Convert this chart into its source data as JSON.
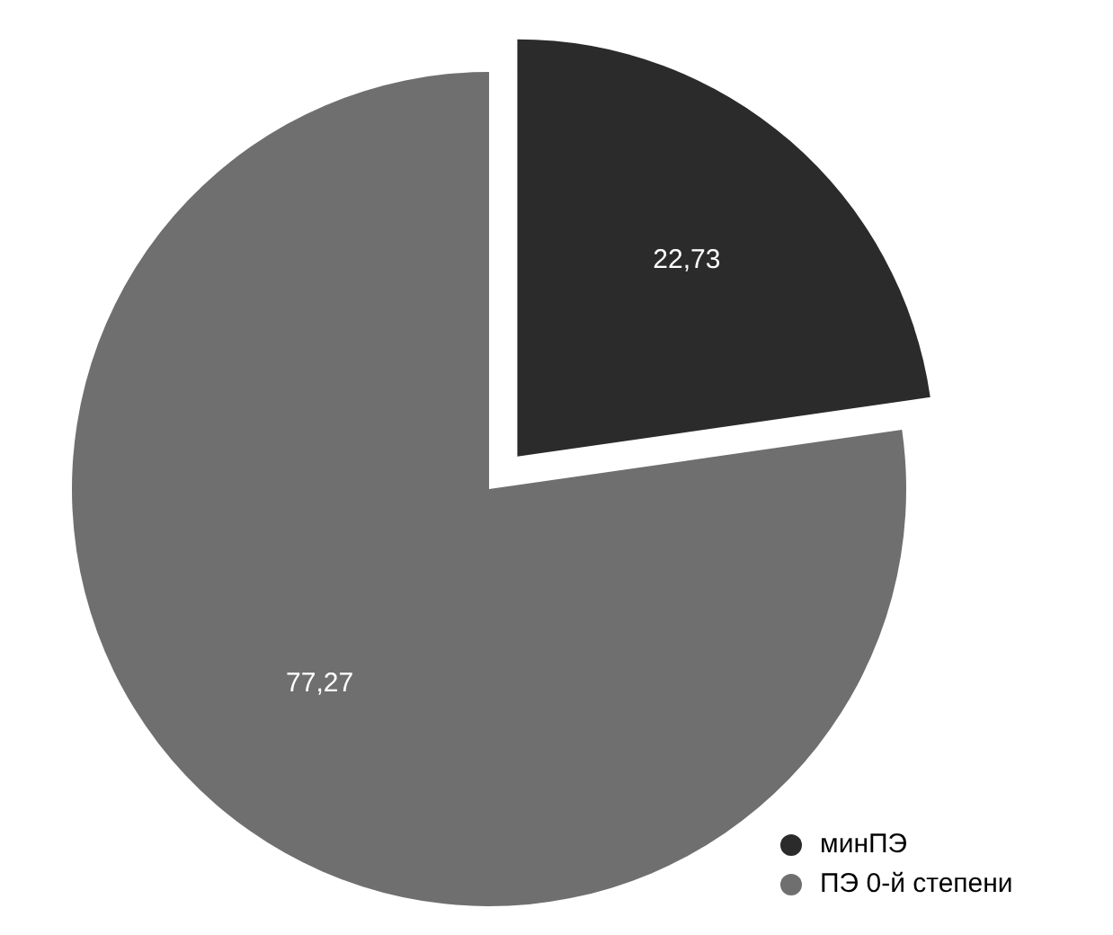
{
  "chart_data": {
    "type": "pie",
    "categories": [
      "минПЭ",
      "ПЭ 0-й степени"
    ],
    "values": [
      22.73,
      77.27
    ],
    "colors": [
      "#2b2b2b",
      "#6f6f6f"
    ],
    "value_labels": [
      "22,73",
      "77,27"
    ],
    "legend": "bottom right"
  }
}
